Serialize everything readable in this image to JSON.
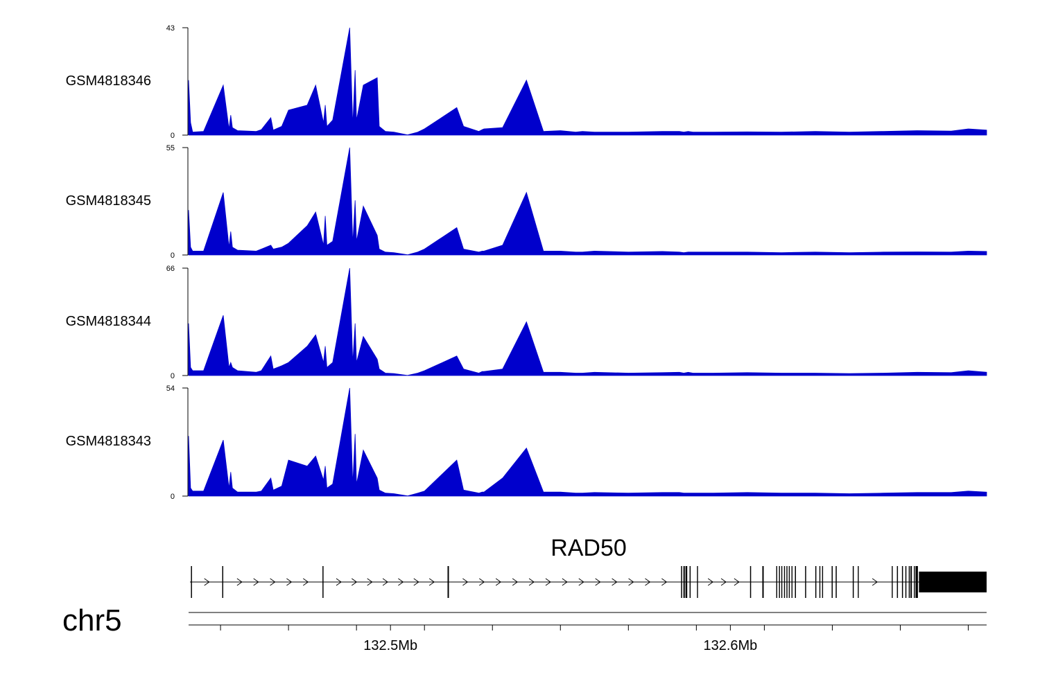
{
  "chart_data": {
    "type": "area",
    "chromosome": "chr5",
    "xlim": [
      132.4406,
      132.6754
    ],
    "x_ticks": [
      132.45,
      132.47,
      132.49,
      132.51,
      132.53,
      132.55,
      132.57,
      132.59,
      132.61,
      132.63,
      132.65,
      132.67
    ],
    "x_tick_labels": [
      {
        "value": 132.5,
        "label": "132.5Mb"
      },
      {
        "value": 132.6,
        "label": "132.6Mb"
      }
    ],
    "color": "#0000cc",
    "x": [
      132.4406,
      132.4412,
      132.4418,
      132.445,
      132.4508,
      132.4525,
      132.453,
      132.4535,
      132.455,
      132.4605,
      132.462,
      132.4648,
      132.4655,
      132.468,
      132.47,
      132.4755,
      132.478,
      132.4803,
      132.4808,
      132.4813,
      132.483,
      132.488,
      132.4889,
      132.4896,
      132.49,
      132.492,
      132.4961,
      132.4967,
      132.4985,
      132.501,
      132.505,
      132.508,
      132.51,
      132.5195,
      132.5215,
      132.526,
      132.527,
      132.5275,
      132.533,
      132.54,
      132.545,
      132.55,
      132.5545,
      132.5565,
      132.56,
      132.57,
      132.58,
      132.585,
      132.5863,
      132.5876,
      132.589,
      132.595,
      132.605,
      132.615,
      132.625,
      132.635,
      132.645,
      132.655,
      132.665,
      132.67,
      132.6754
    ],
    "series": [
      {
        "name": "GSM4818346",
        "ymax": 43,
        "values": [
          22.0,
          5.0,
          1.2,
          1.5,
          20.0,
          2.5,
          8.0,
          3.0,
          1.8,
          1.5,
          2.2,
          7.0,
          2.0,
          3.5,
          10.0,
          12.0,
          20.0,
          5.0,
          12.0,
          3.5,
          6.0,
          43.0,
          4.0,
          26.0,
          6.0,
          20.0,
          23.0,
          3.5,
          1.5,
          1.2,
          0.1,
          1.2,
          2.5,
          11.0,
          3.5,
          1.5,
          2.2,
          2.5,
          3.0,
          22.0,
          1.5,
          1.8,
          1.2,
          1.5,
          1.2,
          1.2,
          1.5,
          1.5,
          1.2,
          1.5,
          1.2,
          1.2,
          1.3,
          1.2,
          1.5,
          1.2,
          1.5,
          1.8,
          1.6,
          2.5,
          2.0
        ]
      },
      {
        "name": "GSM4818345",
        "ymax": 55,
        "values": [
          23.0,
          4.0,
          2.0,
          2.0,
          32.0,
          4.0,
          12.0,
          4.0,
          2.5,
          2.0,
          3.0,
          5.0,
          3.0,
          4.0,
          6.0,
          15.0,
          22.0,
          5.0,
          20.0,
          5.0,
          7.0,
          55.0,
          6.0,
          28.0,
          7.0,
          25.0,
          10.0,
          3.0,
          1.5,
          1.2,
          0.1,
          1.5,
          3.0,
          14.0,
          3.0,
          1.5,
          2.0,
          2.0,
          5.0,
          32.0,
          2.0,
          2.0,
          1.5,
          1.5,
          2.0,
          1.5,
          1.8,
          1.5,
          1.2,
          1.5,
          1.5,
          1.5,
          1.5,
          1.2,
          1.5,
          1.2,
          1.5,
          1.6,
          1.5,
          2.0,
          1.8
        ]
      },
      {
        "name": "GSM4818344",
        "ymax": 66,
        "values": [
          32.0,
          5.0,
          3.0,
          3.0,
          37.0,
          5.0,
          8.0,
          5.0,
          3.0,
          2.0,
          3.0,
          12.0,
          4.0,
          6.0,
          8.0,
          18.0,
          25.0,
          8.0,
          18.0,
          5.0,
          8.0,
          66.0,
          8.0,
          32.0,
          8.0,
          24.0,
          10.0,
          4.0,
          1.5,
          1.2,
          0.1,
          1.5,
          3.0,
          12.0,
          4.0,
          1.5,
          2.5,
          2.5,
          4.0,
          33.0,
          2.0,
          2.0,
          1.5,
          1.5,
          2.0,
          1.5,
          1.8,
          2.0,
          1.5,
          2.0,
          1.5,
          1.5,
          1.8,
          1.5,
          1.5,
          1.2,
          1.5,
          2.0,
          1.8,
          3.0,
          2.0
        ]
      },
      {
        "name": "GSM4818343",
        "ymax": 54,
        "values": [
          30.0,
          4.0,
          2.5,
          2.5,
          28.0,
          4.0,
          12.0,
          4.0,
          2.0,
          2.0,
          2.5,
          9.0,
          3.0,
          5.0,
          18.0,
          15.0,
          20.0,
          8.0,
          15.0,
          4.0,
          6.0,
          54.0,
          6.0,
          31.0,
          6.0,
          23.0,
          9.0,
          3.0,
          1.5,
          1.2,
          0.1,
          1.5,
          2.5,
          18.0,
          3.0,
          1.5,
          2.0,
          2.0,
          9.0,
          24.0,
          2.0,
          2.0,
          1.5,
          1.5,
          1.8,
          1.5,
          1.8,
          1.8,
          1.5,
          1.5,
          1.5,
          1.5,
          1.8,
          1.5,
          1.5,
          1.2,
          1.5,
          1.8,
          1.8,
          2.5,
          2.0
        ]
      }
    ],
    "gene": {
      "name": "RAD50",
      "strand": "+",
      "start": 132.441,
      "end": 132.6754,
      "exons": [
        {
          "start": 132.4413,
          "end": 132.4416
        },
        {
          "start": 132.4505,
          "end": 132.4508
        },
        {
          "start": 132.48,
          "end": 132.4803
        },
        {
          "start": 132.5168,
          "end": 132.5172
        },
        {
          "start": 132.5855,
          "end": 132.5858
        },
        {
          "start": 132.5862,
          "end": 132.5866
        },
        {
          "start": 132.5868,
          "end": 132.5873
        },
        {
          "start": 132.588,
          "end": 132.5883
        },
        {
          "start": 132.5902,
          "end": 132.5904
        },
        {
          "start": 132.6058,
          "end": 132.6061
        },
        {
          "start": 132.6094,
          "end": 132.6098
        },
        {
          "start": 132.6135,
          "end": 132.6137
        },
        {
          "start": 132.6143,
          "end": 132.6145
        },
        {
          "start": 132.615,
          "end": 132.6152
        },
        {
          "start": 132.6158,
          "end": 132.616
        },
        {
          "start": 132.6165,
          "end": 132.6167
        },
        {
          "start": 132.6172,
          "end": 132.6174
        },
        {
          "start": 132.618,
          "end": 132.6182
        },
        {
          "start": 132.619,
          "end": 132.6193
        },
        {
          "start": 132.622,
          "end": 132.6223
        },
        {
          "start": 132.625,
          "end": 132.6253
        },
        {
          "start": 132.6262,
          "end": 132.6264
        },
        {
          "start": 132.627,
          "end": 132.6272
        },
        {
          "start": 132.6298,
          "end": 132.6301
        },
        {
          "start": 132.631,
          "end": 132.6313
        },
        {
          "start": 132.636,
          "end": 132.6363
        },
        {
          "start": 132.6375,
          "end": 132.6377
        },
        {
          "start": 132.6475,
          "end": 132.6477
        },
        {
          "start": 132.649,
          "end": 132.6493
        },
        {
          "start": 132.6505,
          "end": 132.6508
        },
        {
          "start": 132.6515,
          "end": 132.6518
        },
        {
          "start": 132.6525,
          "end": 132.6528
        },
        {
          "start": 132.653,
          "end": 132.6534
        },
        {
          "start": 132.654,
          "end": 132.6542
        },
        {
          "start": 132.6545,
          "end": 132.6552
        },
        {
          "start": 132.6555,
          "end": 132.6754
        }
      ]
    }
  }
}
